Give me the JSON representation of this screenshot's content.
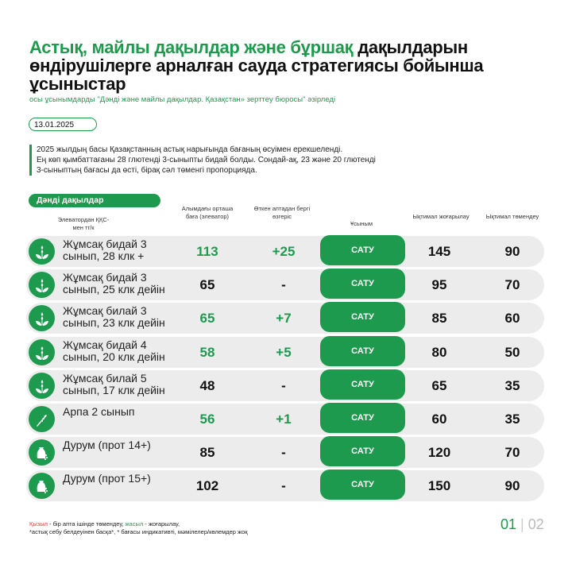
{
  "title": {
    "green": "Астық, майлы дақылдар және бұршақ",
    "black": " дақылдарын өндірушілерге арналған сауда стратегиясы бойынша ұсыныстар"
  },
  "subtitle": "осы ұсынымдарды \"Дәнді және майлы дақылдар. Қазақстан» зерттеу бюросы\" әзірледі",
  "date": "13.01.2025",
  "note": [
    "2025 жылдың басы Қазақстанның астық нарығында бағаның өсуімен ерекшеленді.",
    "Ең көп қымбаттағаны 28 глютенді 3-сыныпты бидай болды. Сондай-ақ, 23 және 20 глютенді",
    "3-сыныптың бағасы да өсті, бірақ сәл төменгі пропорцияда."
  ],
  "section": "Дәнді дақылдар",
  "headers": {
    "item": "Элеватордан ҚҚС-мен тг/к",
    "price": "Алымдағы орташа баға (элеватор)",
    "change": "Өткен аптадан бергі өзгеріс",
    "rec": "Ұсыным",
    "up": "Ықтимал жоғарылау",
    "down": "Ықтимал төмендеу"
  },
  "colors": {
    "accent": "#1e9a4f",
    "row": "#ececec",
    "red": "#e53935"
  },
  "rows": [
    {
      "icon": "wheat-icon",
      "name": "Жұмсақ бидай 3 сынып, 28 клк +",
      "price": "113",
      "price_up": true,
      "change": "+25",
      "rec": "САТУ",
      "up": "145",
      "down": "90"
    },
    {
      "icon": "wheat-icon",
      "name": "Жұмсақ бидай 3 сынып, 25 клк дейін",
      "price": "65",
      "price_up": false,
      "change": "-",
      "rec": "САТУ",
      "up": "95",
      "down": "70"
    },
    {
      "icon": "wheat-icon",
      "name": "Жұмсақ билай 3 сынып, 23 клк дейін",
      "price": "65",
      "price_up": true,
      "change": "+7",
      "rec": "САТУ",
      "up": "85",
      "down": "60"
    },
    {
      "icon": "wheat-icon",
      "name": "Жұмсақ бидай 4 сынып, 20 клк дейін",
      "price": "58",
      "price_up": true,
      "change": "+5",
      "rec": "САТУ",
      "up": "80",
      "down": "50"
    },
    {
      "icon": "wheat-icon",
      "name": "Жұмсақ билай 5 сынып, 17 клк дейін",
      "price": "48",
      "price_up": false,
      "change": "-",
      "rec": "САТУ",
      "up": "65",
      "down": "35"
    },
    {
      "icon": "barley-icon",
      "name": "Арпа 2 сынып",
      "price": "56",
      "price_up": true,
      "change": "+1",
      "rec": "САТУ",
      "up": "60",
      "down": "35"
    },
    {
      "icon": "grain-sack-icon",
      "name": "Дурум (прот 14+)",
      "price": "85",
      "price_up": false,
      "change": "-",
      "rec": "САТУ",
      "up": "120",
      "down": "70"
    },
    {
      "icon": "grain-sack-icon",
      "name": "Дурум (прот 15+)",
      "price": "102",
      "price_up": false,
      "change": "-",
      "rec": "САТУ",
      "up": "150",
      "down": "90"
    }
  ],
  "footer": {
    "red_word": "Қызыл",
    "red_text": " - бір апта ішінде төмендеу, ",
    "green_word": "жасыл",
    "green_text": " - жоғарылау,",
    "line2": "*астық себу белдеуінен басқа*, * бағасы индикативті, мәмілелер/көлемдер жоқ"
  },
  "pagination": {
    "current": "01",
    "total": "02"
  }
}
